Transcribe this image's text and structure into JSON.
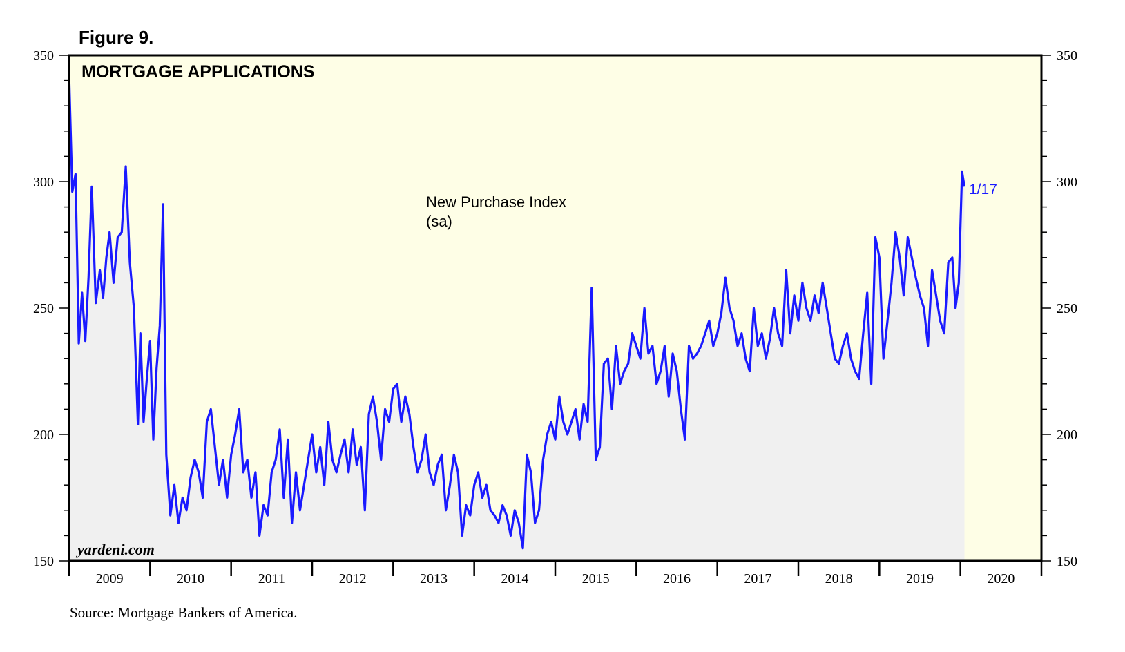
{
  "figure_label": "Figure 9.",
  "source": "Source: Mortgage Bankers of America.",
  "watermark": "yardeni.com",
  "colors": {
    "plot_background": "#fefee6",
    "area_fill": "#f0f0f0",
    "line": "#1a1aff",
    "frame": "#000000"
  },
  "chart_data": {
    "type": "line",
    "title": "MORTGAGE APPLICATIONS",
    "annotation": "New Purchase Index",
    "annotation_sub": "(sa)",
    "last_point_label": "1/17",
    "ylim": [
      150,
      350
    ],
    "y_ticks": [
      150,
      200,
      250,
      300,
      350
    ],
    "y_axes": "left-and-right",
    "xlim": [
      2009.0,
      2021.0
    ],
    "x_tick_labels": [
      "2009",
      "2010",
      "2011",
      "2012",
      "2013",
      "2014",
      "2015",
      "2016",
      "2017",
      "2018",
      "2019",
      "2020"
    ],
    "grid": false,
    "area_under_line": true,
    "series": [
      {
        "x": [
          2009.0,
          2009.04,
          2009.08,
          2009.12,
          2009.16,
          2009.2,
          2009.24,
          2009.28,
          2009.33,
          2009.38,
          2009.42,
          2009.46,
          2009.5,
          2009.55,
          2009.6,
          2009.65,
          2009.7,
          2009.75,
          2009.8,
          2009.85,
          2009.88,
          2009.92,
          2009.96,
          2010.0,
          2010.04,
          2010.08,
          2010.12,
          2010.16,
          2010.2,
          2010.25,
          2010.3,
          2010.35,
          2010.4,
          2010.45,
          2010.5,
          2010.55,
          2010.6,
          2010.65,
          2010.7,
          2010.75,
          2010.8,
          2010.85,
          2010.9,
          2010.95,
          2011.0,
          2011.05,
          2011.1,
          2011.15,
          2011.2,
          2011.25,
          2011.3,
          2011.35,
          2011.4,
          2011.45,
          2011.5,
          2011.55,
          2011.6,
          2011.65,
          2011.7,
          2011.75,
          2011.8,
          2011.85,
          2011.9,
          2011.95,
          2012.0,
          2012.05,
          2012.1,
          2012.15,
          2012.2,
          2012.25,
          2012.3,
          2012.35,
          2012.4,
          2012.45,
          2012.5,
          2012.55,
          2012.6,
          2012.65,
          2012.7,
          2012.75,
          2012.8,
          2012.85,
          2012.9,
          2012.95,
          2013.0,
          2013.05,
          2013.1,
          2013.15,
          2013.2,
          2013.25,
          2013.3,
          2013.35,
          2013.4,
          2013.45,
          2013.5,
          2013.55,
          2013.6,
          2013.65,
          2013.7,
          2013.75,
          2013.8,
          2013.85,
          2013.9,
          2013.95,
          2014.0,
          2014.05,
          2014.1,
          2014.15,
          2014.2,
          2014.25,
          2014.3,
          2014.35,
          2014.4,
          2014.45,
          2014.5,
          2014.55,
          2014.6,
          2014.65,
          2014.7,
          2014.75,
          2014.8,
          2014.85,
          2014.9,
          2014.95,
          2015.0,
          2015.05,
          2015.1,
          2015.15,
          2015.2,
          2015.25,
          2015.3,
          2015.35,
          2015.4,
          2015.45,
          2015.5,
          2015.55,
          2015.6,
          2015.65,
          2015.7,
          2015.75,
          2015.8,
          2015.85,
          2015.9,
          2015.95,
          2016.0,
          2016.05,
          2016.1,
          2016.15,
          2016.2,
          2016.25,
          2016.3,
          2016.35,
          2016.4,
          2016.45,
          2016.5,
          2016.55,
          2016.6,
          2016.65,
          2016.7,
          2016.75,
          2016.8,
          2016.85,
          2016.9,
          2016.95,
          2017.0,
          2017.05,
          2017.1,
          2017.15,
          2017.2,
          2017.25,
          2017.3,
          2017.35,
          2017.4,
          2017.45,
          2017.5,
          2017.55,
          2017.6,
          2017.65,
          2017.7,
          2017.75,
          2017.8,
          2017.85,
          2017.9,
          2017.95,
          2018.0,
          2018.05,
          2018.1,
          2018.15,
          2018.2,
          2018.25,
          2018.3,
          2018.35,
          2018.4,
          2018.45,
          2018.5,
          2018.55,
          2018.6,
          2018.65,
          2018.7,
          2018.75,
          2018.8,
          2018.85,
          2018.9,
          2018.95,
          2019.0,
          2019.05,
          2019.1,
          2019.15,
          2019.2,
          2019.25,
          2019.3,
          2019.35,
          2019.4,
          2019.45,
          2019.5,
          2019.55,
          2019.6,
          2019.65,
          2019.7,
          2019.75,
          2019.8,
          2019.85,
          2019.9,
          2019.94,
          2019.98,
          2020.02,
          2020.05
        ],
        "y": [
          343,
          296,
          303,
          236,
          256,
          237,
          262,
          298,
          252,
          265,
          254,
          270,
          280,
          260,
          278,
          280,
          306,
          268,
          250,
          204,
          240,
          205,
          222,
          237,
          198,
          226,
          243,
          291,
          192,
          168,
          180,
          165,
          175,
          170,
          183,
          190,
          185,
          175,
          205,
          210,
          195,
          180,
          190,
          175,
          192,
          200,
          210,
          185,
          190,
          175,
          185,
          160,
          172,
          168,
          185,
          190,
          202,
          175,
          198,
          165,
          185,
          170,
          180,
          190,
          200,
          185,
          195,
          180,
          205,
          190,
          185,
          192,
          198,
          185,
          202,
          188,
          195,
          170,
          208,
          215,
          205,
          190,
          210,
          205,
          218,
          220,
          205,
          215,
          208,
          195,
          185,
          190,
          200,
          185,
          180,
          188,
          192,
          170,
          180,
          192,
          185,
          160,
          172,
          168,
          180,
          185,
          175,
          180,
          170,
          168,
          165,
          172,
          168,
          160,
          170,
          165,
          155,
          192,
          185,
          165,
          170,
          190,
          200,
          205,
          198,
          215,
          205,
          200,
          205,
          210,
          198,
          212,
          205,
          258,
          190,
          195,
          228,
          230,
          210,
          235,
          220,
          225,
          228,
          240,
          235,
          230,
          250,
          232,
          235,
          220,
          225,
          235,
          215,
          232,
          225,
          210,
          198,
          235,
          230,
          232,
          235,
          240,
          245,
          235,
          240,
          248,
          262,
          250,
          245,
          235,
          240,
          230,
          225,
          250,
          235,
          240,
          230,
          238,
          250,
          240,
          235,
          265,
          240,
          255,
          245,
          260,
          250,
          245,
          255,
          248,
          260,
          250,
          240,
          230,
          228,
          235,
          240,
          230,
          225,
          222,
          240,
          256,
          220,
          278,
          270,
          230,
          245,
          260,
          280,
          270,
          255,
          278,
          270,
          262,
          255,
          250,
          235,
          265,
          255,
          245,
          240,
          268,
          270,
          250,
          260,
          304,
          298
        ]
      }
    ]
  }
}
